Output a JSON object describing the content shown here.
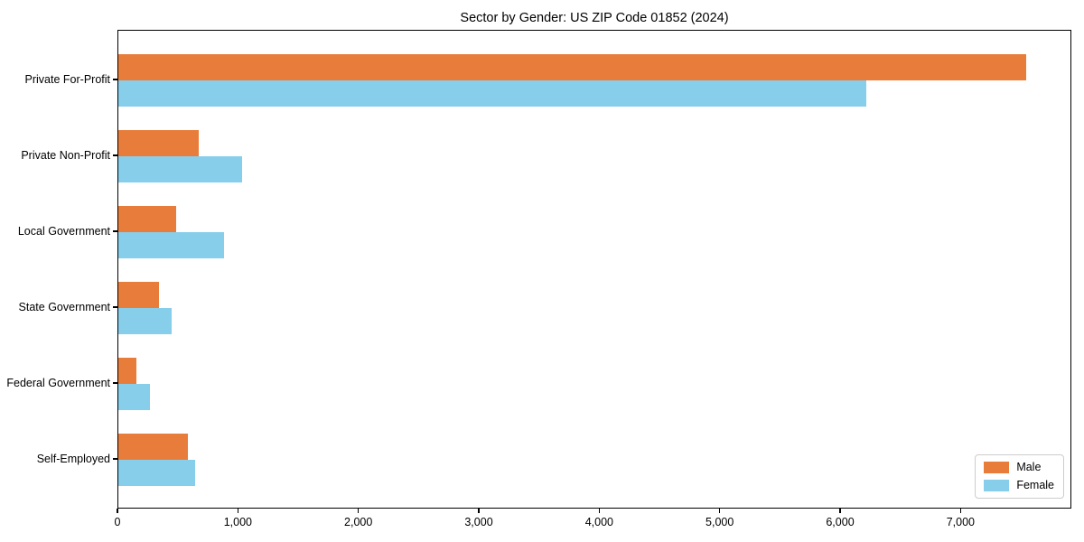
{
  "title": "Sector by Gender: US ZIP Code 01852 (2024)",
  "chart_data": {
    "type": "bar",
    "orientation": "horizontal",
    "title": "Sector by Gender: US ZIP Code 01852 (2024)",
    "categories": [
      "Private For-Profit",
      "Private Non-Profit",
      "Local Government",
      "State Government",
      "Federal Government",
      "Self-Employed"
    ],
    "series": [
      {
        "name": "Male",
        "color": "#E87D3B",
        "values": [
          7540,
          670,
          480,
          340,
          150,
          580
        ]
      },
      {
        "name": "Female",
        "color": "#87CEEB",
        "values": [
          6210,
          1030,
          880,
          440,
          260,
          640
        ]
      }
    ],
    "xlim": [
      0,
      7920
    ],
    "xticks": [
      0,
      1000,
      2000,
      3000,
      4000,
      5000,
      6000,
      7000
    ],
    "xtick_labels": [
      "0",
      "1,000",
      "2,000",
      "3,000",
      "4,000",
      "5,000",
      "6,000",
      "7,000"
    ],
    "xlabel": "",
    "ylabel": "",
    "grid": false,
    "legend_position": "lower right"
  }
}
